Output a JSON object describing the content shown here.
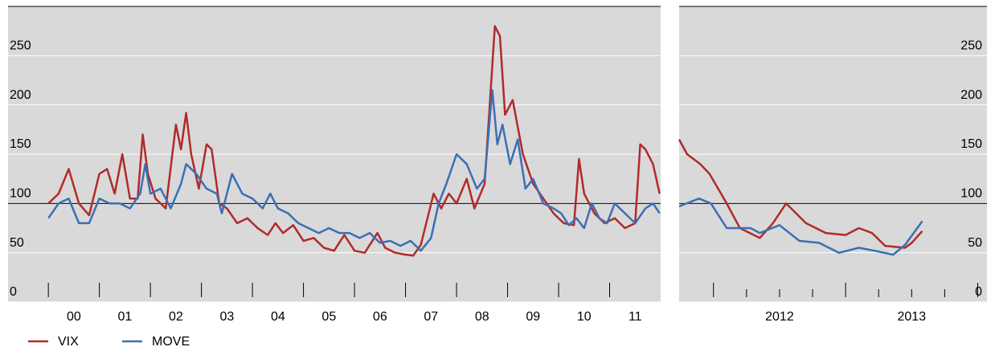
{
  "chart_data": [
    {
      "type": "line",
      "xlim": [
        1999.21,
        2012.0
      ],
      "ylim": [
        0,
        300
      ],
      "yticks": [
        0,
        50,
        100,
        150,
        200,
        250
      ],
      "yaxis_side": "left",
      "reference_line": 100,
      "grid": true,
      "background": "#d9d9d9",
      "xticks": [
        {
          "value": 2000.5,
          "label": "00"
        },
        {
          "value": 2001.5,
          "label": "01"
        },
        {
          "value": 2002.5,
          "label": "02"
        },
        {
          "value": 2003.5,
          "label": "03"
        },
        {
          "value": 2004.5,
          "label": "04"
        },
        {
          "value": 2005.5,
          "label": "05"
        },
        {
          "value": 2006.5,
          "label": "06"
        },
        {
          "value": 2007.5,
          "label": "07"
        },
        {
          "value": 2008.5,
          "label": "08"
        },
        {
          "value": 2009.5,
          "label": "09"
        },
        {
          "value": 2010.5,
          "label": "10"
        },
        {
          "value": 2011.5,
          "label": "11"
        }
      ],
      "xtick_marks": [
        2000,
        2001,
        2002,
        2003,
        2004,
        2005,
        2006,
        2007,
        2008,
        2009,
        2010,
        2011
      ],
      "series": [
        {
          "name": "VIX",
          "color": "#b22a2a",
          "x": [
            2000.0,
            2000.2,
            2000.4,
            2000.6,
            2000.8,
            2001.0,
            2001.15,
            2001.3,
            2001.45,
            2001.6,
            2001.75,
            2001.85,
            2001.95,
            2002.1,
            2002.3,
            2002.5,
            2002.6,
            2002.7,
            2002.8,
            2002.95,
            2003.1,
            2003.2,
            2003.35,
            2003.5,
            2003.7,
            2003.9,
            2004.1,
            2004.3,
            2004.45,
            2004.6,
            2004.8,
            2005.0,
            2005.2,
            2005.4,
            2005.6,
            2005.8,
            2006.0,
            2006.2,
            2006.45,
            2006.6,
            2006.8,
            2007.0,
            2007.15,
            2007.3,
            2007.55,
            2007.7,
            2007.85,
            2008.0,
            2008.2,
            2008.35,
            2008.55,
            2008.75,
            2008.85,
            2008.95,
            2009.1,
            2009.3,
            2009.5,
            2009.7,
            2009.9,
            2010.1,
            2010.3,
            2010.4,
            2010.5,
            2010.7,
            2010.9,
            2011.1,
            2011.3,
            2011.5,
            2011.6,
            2011.7,
            2011.85,
            2011.98
          ],
          "values": [
            100,
            110,
            135,
            100,
            88,
            130,
            135,
            110,
            150,
            105,
            105,
            170,
            130,
            105,
            95,
            180,
            155,
            192,
            150,
            115,
            160,
            155,
            100,
            95,
            80,
            85,
            75,
            68,
            80,
            70,
            78,
            62,
            65,
            55,
            52,
            68,
            52,
            50,
            70,
            55,
            50,
            48,
            47,
            58,
            110,
            95,
            110,
            100,
            125,
            95,
            120,
            280,
            270,
            190,
            205,
            150,
            120,
            105,
            90,
            80,
            78,
            145,
            110,
            90,
            80,
            85,
            75,
            80,
            160,
            155,
            140,
            110
          ]
        },
        {
          "name": "MOVE",
          "color": "#3a6fb5",
          "x": [
            2000.0,
            2000.2,
            2000.4,
            2000.6,
            2000.8,
            2001.0,
            2001.2,
            2001.4,
            2001.6,
            2001.8,
            2001.9,
            2002.0,
            2002.2,
            2002.4,
            2002.6,
            2002.7,
            2002.9,
            2003.1,
            2003.3,
            2003.4,
            2003.6,
            2003.8,
            2004.0,
            2004.2,
            2004.35,
            2004.5,
            2004.7,
            2004.9,
            2005.1,
            2005.3,
            2005.5,
            2005.7,
            2005.9,
            2006.1,
            2006.3,
            2006.5,
            2006.7,
            2006.9,
            2007.1,
            2007.3,
            2007.5,
            2007.65,
            2007.8,
            2008.0,
            2008.2,
            2008.4,
            2008.55,
            2008.7,
            2008.8,
            2008.9,
            2009.05,
            2009.2,
            2009.35,
            2009.5,
            2009.7,
            2009.9,
            2010.05,
            2010.2,
            2010.35,
            2010.5,
            2010.65,
            2010.8,
            2010.95,
            2011.1,
            2011.3,
            2011.5,
            2011.7,
            2011.85,
            2011.98
          ],
          "values": [
            85,
            100,
            105,
            80,
            80,
            105,
            100,
            100,
            95,
            110,
            140,
            110,
            115,
            95,
            120,
            140,
            130,
            115,
            110,
            90,
            130,
            110,
            105,
            95,
            110,
            95,
            90,
            80,
            75,
            70,
            75,
            70,
            70,
            65,
            70,
            60,
            62,
            57,
            62,
            52,
            65,
            100,
            120,
            150,
            140,
            115,
            125,
            215,
            160,
            180,
            140,
            165,
            115,
            125,
            100,
            95,
            90,
            78,
            85,
            75,
            100,
            85,
            80,
            100,
            90,
            80,
            95,
            100,
            90
          ]
        }
      ]
    },
    {
      "type": "line",
      "xlim": [
        2011.74,
        2014.07
      ],
      "ylim": [
        0,
        300
      ],
      "yticks": [
        0,
        50,
        100,
        150,
        200,
        250
      ],
      "yaxis_side": "right",
      "reference_line": 100,
      "grid": true,
      "background": "#d9d9d9",
      "xticks": [
        {
          "value": 2012.5,
          "label": "2012"
        },
        {
          "value": 2013.5,
          "label": "2013"
        }
      ],
      "xtick_marks": [
        2012,
        2012.25,
        2012.5,
        2012.75,
        2013,
        2013.25,
        2013.5,
        2013.75,
        2014
      ],
      "series": [
        {
          "color": "#b22a2a",
          "x": [
            2011.74,
            2011.8,
            2011.9,
            2011.97,
            2012.1,
            2012.2,
            2012.35,
            2012.45,
            2012.55,
            2012.7,
            2012.85,
            2013.0,
            2013.1,
            2013.2,
            2013.3,
            2013.45,
            2013.5,
            2013.58
          ],
          "values": [
            165,
            150,
            140,
            130,
            100,
            75,
            65,
            80,
            100,
            80,
            70,
            68,
            75,
            70,
            57,
            55,
            60,
            72
          ]
        },
        {
          "color": "#3a6fb5",
          "x": [
            2011.74,
            2011.89,
            2011.98,
            2012.1,
            2012.28,
            2012.35,
            2012.5,
            2012.65,
            2012.8,
            2012.95,
            2013.1,
            2013.22,
            2013.36,
            2013.45,
            2013.58
          ],
          "values": [
            97,
            105,
            100,
            75,
            75,
            70,
            78,
            62,
            60,
            50,
            55,
            52,
            48,
            58,
            82
          ]
        }
      ]
    }
  ]
}
